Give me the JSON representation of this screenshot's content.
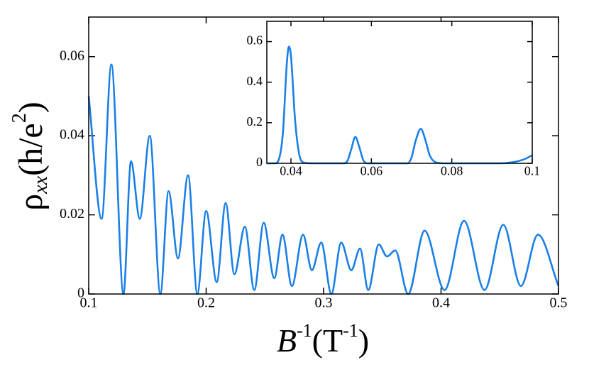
{
  "chart_data": [
    {
      "type": "line",
      "xlabel": {
        "base": "B",
        "sup": "-1",
        "open": "(T",
        "sup2": "-1",
        "close": ")"
      },
      "ylabel": {
        "base": "ρ",
        "sub": "xx",
        "open": "(h/e",
        "sup": "2",
        "close": ")"
      },
      "x": [
        0.1,
        0.111,
        0.1193,
        0.1296,
        0.136,
        0.1435,
        0.152,
        0.161,
        0.168,
        0.176,
        0.1846,
        0.1925,
        0.2,
        0.209,
        0.2166,
        0.224,
        0.233,
        0.241,
        0.249,
        0.258,
        0.265,
        0.273,
        0.2825,
        0.29,
        0.298,
        0.3066,
        0.315,
        0.3236,
        0.331,
        0.338,
        0.347,
        0.354,
        0.361,
        0.372,
        0.386,
        0.403,
        0.4196,
        0.437,
        0.453,
        0.468,
        0.4825,
        0.5
      ],
      "series": [
        {
          "color": "#1a7fe6",
          "values": [
            0.05,
            0.019,
            0.058,
            0.0,
            0.0335,
            0.019,
            0.04,
            0.0,
            0.026,
            0.009,
            0.03,
            0.0,
            0.021,
            0.003,
            0.023,
            0.005,
            0.017,
            0.001,
            0.018,
            0.004,
            0.015,
            0.002,
            0.015,
            0.006,
            0.013,
            0.0,
            0.013,
            0.006,
            0.0115,
            0.001,
            0.0125,
            0.0095,
            0.011,
            0.0,
            0.016,
            0.001,
            0.0185,
            0.001,
            0.0175,
            0.002,
            0.015,
            0.002
          ]
        }
      ],
      "xlim": [
        0.1,
        0.5
      ],
      "ylim": [
        0,
        0.07
      ],
      "xticks": [
        0.1,
        0.2,
        0.3,
        0.4,
        0.5
      ],
      "yticks": [
        0,
        0.02,
        0.04,
        0.06
      ]
    },
    {
      "type": "line",
      "x": [
        0.034,
        0.036,
        0.037,
        0.038,
        0.039,
        0.0395,
        0.04,
        0.041,
        0.042,
        0.043,
        0.045,
        0.053,
        0.054,
        0.055,
        0.056,
        0.057,
        0.058,
        0.059,
        0.069,
        0.07,
        0.071,
        0.0723,
        0.0735,
        0.0745,
        0.076,
        0.078,
        0.092,
        0.095,
        0.098,
        0.1
      ],
      "series": [
        {
          "color": "#1a7fe6",
          "values": [
            0,
            0,
            0.02,
            0.15,
            0.5,
            0.575,
            0.53,
            0.22,
            0.05,
            0.005,
            0,
            0,
            0.01,
            0.07,
            0.13,
            0.08,
            0.015,
            0,
            0,
            0.03,
            0.11,
            0.17,
            0.11,
            0.04,
            0.005,
            0,
            0,
            0.005,
            0.02,
            0.04
          ]
        }
      ],
      "xlim": [
        0.034,
        0.1
      ],
      "ylim": [
        0,
        0.7
      ],
      "xticks": [
        0.04,
        0.06,
        0.08,
        0.1
      ],
      "yticks": [
        0,
        0.2,
        0.4,
        0.6
      ]
    }
  ]
}
